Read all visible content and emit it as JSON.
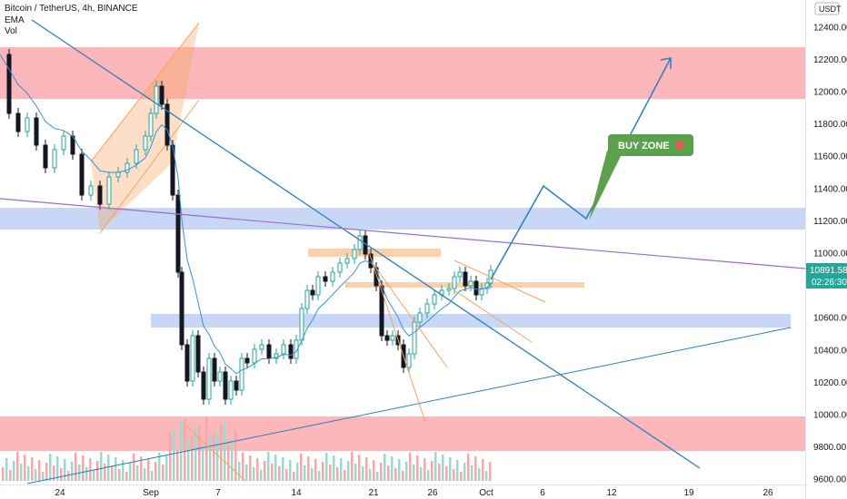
{
  "header": {
    "symbol": "Bitcoin / TetherUS, 4h, BINANCE",
    "indicator_ema": "EMA",
    "indicator_vol": "Vol"
  },
  "chart_data": {
    "type": "candlestick",
    "currency": "USDT",
    "y_ticks": [
      "12400.00",
      "12200.00",
      "12000.00",
      "11800.00",
      "11600.00",
      "11400.00",
      "11200.00",
      "11000.00",
      "10800.00",
      "10600.00",
      "10400.00",
      "10200.00",
      "10000.00",
      "9800.00",
      "9600.00"
    ],
    "x_ticks": [
      "24",
      "Sep",
      "7",
      "14",
      "21",
      "26",
      "Oct",
      "6",
      "12",
      "19",
      "26"
    ],
    "ylim": [
      9570,
      12570
    ],
    "last_price": "10891.58",
    "countdown": "02:26:30",
    "annotation": "BUY ZONE",
    "colors": {
      "up": "#26a69a",
      "down": "#131722",
      "last_price_bg": "#26a69a",
      "red_zone": "#f77c80",
      "blue_zone": "#9db6ef",
      "trendline": "#2a7fc0",
      "purple_line": "#9c6ccf",
      "orange": "#f7a35c",
      "buy_zone_bg": "#5ba04c"
    }
  }
}
